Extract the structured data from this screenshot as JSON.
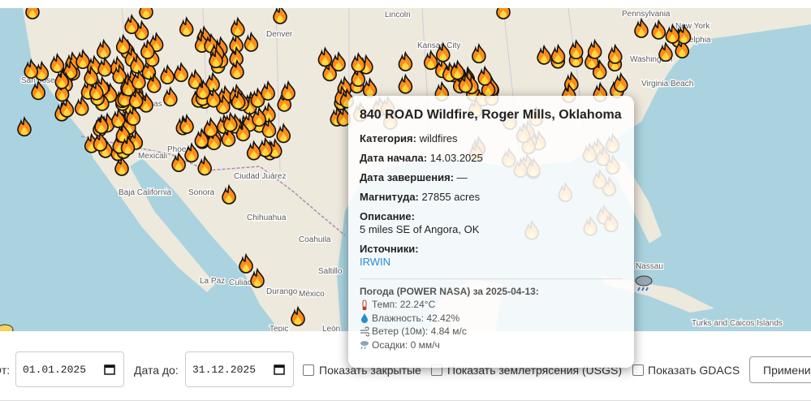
{
  "map": {
    "labels": [
      "Lincoln",
      "Denver",
      "Kansas City",
      "San Jose",
      "Las Vegas",
      "Phoenix",
      "Mexicali",
      "Ciudad Juárez",
      "Chihuahua",
      "Baja California",
      "Sonora",
      "Coahuila",
      "Saltillo",
      "Durango",
      "México",
      "La Paz",
      "Culiacán",
      "Tepic",
      "León",
      "New York",
      "Philadelphia",
      "Washington",
      "Virginia Beach",
      "Nassau",
      "Turks and Caicos Islands",
      "Pennsylvania"
    ]
  },
  "popup": {
    "title": "840 ROAD Wildfire, Roger Mills, Oklahoma",
    "fields": [
      {
        "label": "Категория:",
        "value": "wildfires"
      },
      {
        "label": "Дата начала:",
        "value": "14.03.2025"
      },
      {
        "label": "Дата завершения:",
        "value": "—"
      },
      {
        "label": "Магнитуда:",
        "value": "27855 acres"
      }
    ],
    "description": {
      "label": "Описание:",
      "value": "5 miles SE of Angora, OK"
    },
    "sources": {
      "label": "Источники:",
      "link": "IRWIN"
    },
    "weather": {
      "title": "Погода (POWER NASA) за 2025-04-13:",
      "lines": [
        "Темп: 22.24°C",
        "Влажность: 42.42%",
        "Ветер (10м): 4.84 м/с",
        "Осадки: 0 мм/ч"
      ]
    }
  },
  "filters": {
    "from_label": "От:",
    "from_value": "01.01.2025",
    "to_label": "Дата до:",
    "to_value": "31.12.2025",
    "checkboxes": [
      "Показать закрытые",
      "Показать землетрясения (USGS)",
      "Показать GDACS"
    ],
    "apply": "Применить"
  }
}
